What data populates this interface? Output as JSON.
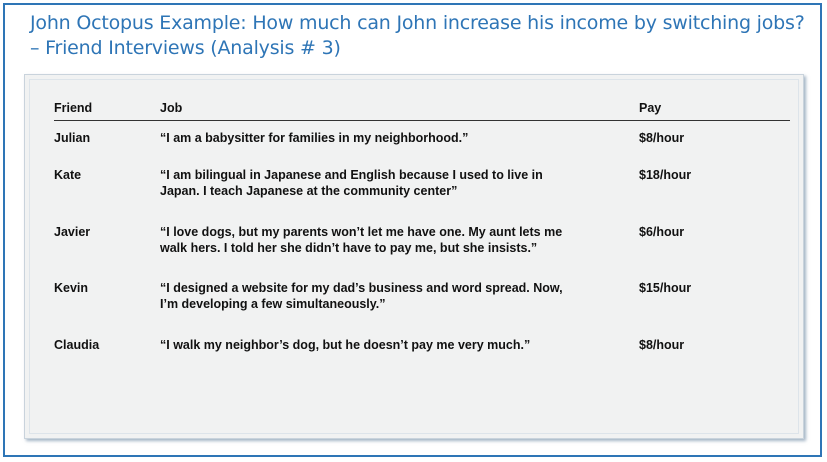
{
  "title": "John Octopus Example: How much can John increase his income by switching jobs? – Friend Interviews (Analysis # 3)",
  "table": {
    "headers": {
      "friend": "Friend",
      "job": "Job",
      "pay": "Pay"
    },
    "rows": [
      {
        "friend": "Julian",
        "job": "“I am a babysitter for families in my neighborhood.”",
        "pay": "$8/hour"
      },
      {
        "friend": "Kate",
        "job": "“I am bilingual in Japanese and English because I used to live in Japan. I teach Japanese at the community center”",
        "pay": "$18/hour"
      },
      {
        "friend": "Javier",
        "job": "“I love dogs, but my parents won’t let me have one. My aunt lets me walk hers. I told her she didn’t have to pay me, but she insists.”",
        "pay": "$6/hour"
      },
      {
        "friend": "Kevin",
        "job": "“I designed a website for my dad’s business and word spread. Now, I’m developing a few simultaneously.”",
        "pay": "$15/hour"
      },
      {
        "friend": "Claudia",
        "job": "“I walk my neighbor’s dog, but he doesn’t pay me very much.”",
        "pay": "$8/hour"
      }
    ]
  }
}
